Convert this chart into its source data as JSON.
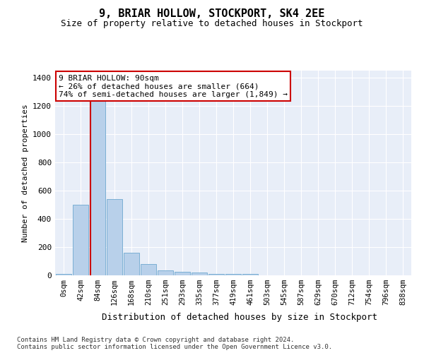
{
  "title": "9, BRIAR HOLLOW, STOCKPORT, SK4 2EE",
  "subtitle": "Size of property relative to detached houses in Stockport",
  "xlabel": "Distribution of detached houses by size in Stockport",
  "ylabel": "Number of detached properties",
  "bar_labels": [
    "0sqm",
    "42sqm",
    "84sqm",
    "126sqm",
    "168sqm",
    "210sqm",
    "251sqm",
    "293sqm",
    "335sqm",
    "377sqm",
    "419sqm",
    "461sqm",
    "503sqm",
    "545sqm",
    "587sqm",
    "629sqm",
    "670sqm",
    "712sqm",
    "754sqm",
    "796sqm",
    "838sqm"
  ],
  "bar_values": [
    8,
    500,
    1240,
    540,
    160,
    80,
    35,
    25,
    20,
    8,
    8,
    8,
    0,
    0,
    0,
    0,
    0,
    0,
    0,
    0,
    0
  ],
  "bar_color": "#b8d0ea",
  "bar_edge_color": "#7bafd4",
  "vline_x": 2.0,
  "vline_color": "#cc0000",
  "annotation_text": "9 BRIAR HOLLOW: 90sqm\n← 26% of detached houses are smaller (664)\n74% of semi-detached houses are larger (1,849) →",
  "annotation_box_facecolor": "#ffffff",
  "annotation_box_edgecolor": "#cc0000",
  "ylim": [
    0,
    1450
  ],
  "yticks": [
    0,
    200,
    400,
    600,
    800,
    1000,
    1200,
    1400
  ],
  "plot_bg_color": "#e8eef8",
  "footer_line1": "Contains HM Land Registry data © Crown copyright and database right 2024.",
  "footer_line2": "Contains public sector information licensed under the Open Government Licence v3.0."
}
